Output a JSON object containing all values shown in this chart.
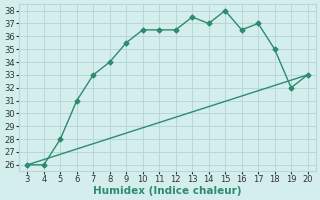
{
  "xlabel": "Humidex (Indice chaleur)",
  "line1_x": [
    3,
    4,
    5,
    6,
    7,
    8,
    9,
    10,
    11,
    12,
    13,
    14,
    15,
    16,
    17,
    18,
    19,
    20
  ],
  "line1_y": [
    26,
    26,
    28,
    31,
    33,
    34,
    35.5,
    36.5,
    36.5,
    36.5,
    37.5,
    37,
    38,
    36.5,
    37,
    35,
    32,
    33
  ],
  "line2_x": [
    3,
    20
  ],
  "line2_y": [
    26,
    33
  ],
  "line_color": "#2e8b6e",
  "bg_color": "#d4eeee",
  "grid_color": "#b8d8d8",
  "xlim": [
    2.5,
    20.5
  ],
  "ylim": [
    25.5,
    38.5
  ],
  "xticks": [
    3,
    4,
    5,
    6,
    7,
    8,
    9,
    10,
    11,
    12,
    13,
    14,
    15,
    16,
    17,
    18,
    19,
    20
  ],
  "yticks": [
    26,
    27,
    28,
    29,
    30,
    31,
    32,
    33,
    34,
    35,
    36,
    37,
    38
  ],
  "tick_fontsize": 6,
  "label_fontsize": 7.5,
  "marker": "D",
  "marker_size": 2.5,
  "linewidth": 1.0
}
